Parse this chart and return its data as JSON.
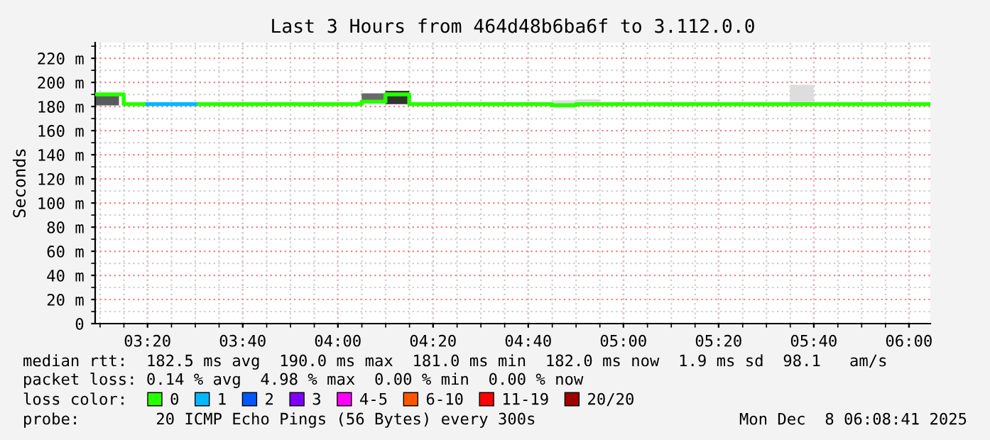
{
  "chart_data": {
    "type": "step",
    "title": "Last 3 Hours from 464d48b6ba6f to 3.112.0.0",
    "ylabel": "Seconds",
    "xlim": [
      3.15,
      6.075
    ],
    "ylim": [
      0,
      233
    ],
    "xticks": [
      {
        "value": 3.3333,
        "label": "03:20"
      },
      {
        "value": 3.6667,
        "label": "03:40"
      },
      {
        "value": 4.0,
        "label": "04:00"
      },
      {
        "value": 4.3333,
        "label": "04:20"
      },
      {
        "value": 4.6667,
        "label": "04:40"
      },
      {
        "value": 5.0,
        "label": "05:00"
      },
      {
        "value": 5.3333,
        "label": "05:20"
      },
      {
        "value": 5.6667,
        "label": "05:40"
      },
      {
        "value": 6.0,
        "label": "06:00"
      }
    ],
    "yticks": [
      0,
      {
        "value": 20,
        "label": "20 m"
      },
      {
        "value": 40,
        "label": "40 m"
      },
      {
        "value": 60,
        "label": "60 m"
      },
      {
        "value": 80,
        "label": "80 m"
      },
      {
        "value": 100,
        "label": "100 m"
      },
      {
        "value": 120,
        "label": "120 m"
      },
      {
        "value": 140,
        "label": "140 m"
      },
      {
        "value": 160,
        "label": "160 m"
      },
      {
        "value": 180,
        "label": "180 m"
      },
      {
        "value": 200,
        "label": "200 m"
      },
      {
        "value": 220,
        "label": "220 m"
      }
    ],
    "grid": true,
    "legend": "bottom",
    "legend_title": "loss color:",
    "series": [
      {
        "type": "bar",
        "x": [
          3.1917,
          4.125,
          4.2083,
          4.7917,
          4.875,
          5.625
        ],
        "base": [
          181,
          183,
          182,
          182,
          183,
          182
        ],
        "values": [
          10,
          8,
          11,
          3,
          3,
          16
        ],
        "colors": [
          "#5a5a5a",
          "#6a6a6a",
          "#333333",
          "#dddddd",
          "#dddddd",
          "#dddddd"
        ]
      },
      {
        "name": "0",
        "color": "#26ff00",
        "x": [
          3.15,
          3.25,
          3.3333
        ],
        "values": [
          190,
          182,
          182
        ]
      },
      {
        "color": "#26ff00",
        "x": [
          3.5,
          4.0833,
          4.1667,
          4.25,
          4.75,
          4.8333,
          6.075
        ],
        "values": [
          182,
          184,
          190,
          182,
          181,
          182,
          182
        ]
      },
      {
        "name": "1",
        "color": "#00b8ff",
        "x": [
          3.3333,
          3.5
        ],
        "values": [
          182,
          182
        ]
      },
      {
        "name": "2",
        "color": "#0059ff"
      },
      {
        "name": "3",
        "color": "#7e00ff"
      },
      {
        "name": "4-5",
        "color": "#ff00ff"
      },
      {
        "name": "6-10",
        "color": "#ff5500"
      },
      {
        "name": "11-19",
        "color": "#ff0000"
      },
      {
        "name": "20/20",
        "color": "#a10000"
      }
    ],
    "annotations": [
      "median rtt:  182.5 ms avg  190.0 ms max  181.0 ms min  182.0 ms now  1.9 ms sd  98.1   am/s",
      "packet loss: 0.14 % avg  4.98 % max  0.00 % min  0.00 % now",
      "probe:        20 ICMP Echo Pings (56 Bytes) every 300s",
      "Mon Dec  8 06:08:41 2025"
    ]
  }
}
